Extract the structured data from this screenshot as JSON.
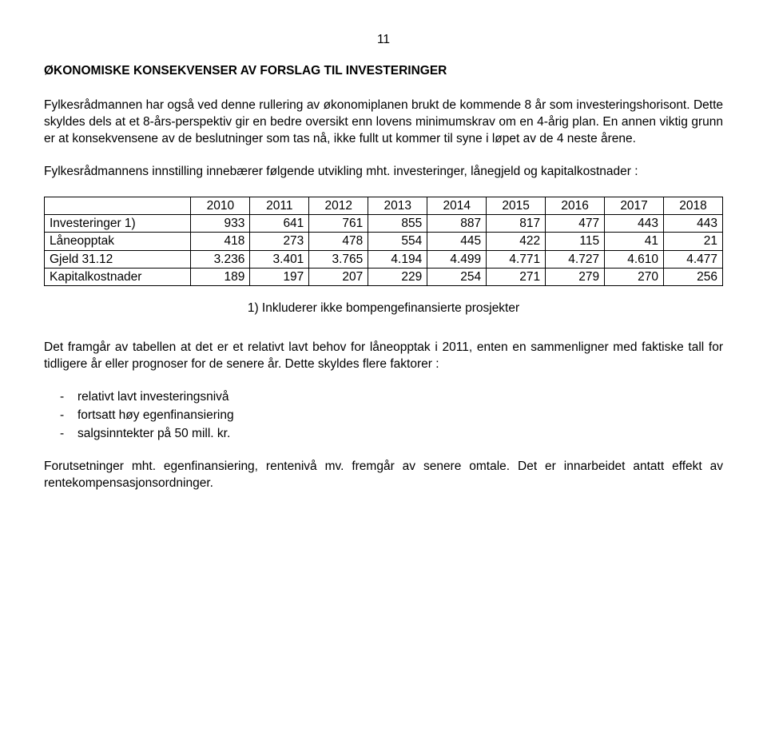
{
  "page_number": "11",
  "title": "ØKONOMISKE KONSEKVENSER AV FORSLAG TIL INVESTERINGER",
  "para1": "Fylkesrådmannen har også ved denne rullering av økonomiplanen brukt de kommende 8 år som investeringshorisont. Dette skyldes dels at et 8-års-perspektiv gir en bedre oversikt enn lovens minimumskrav om en 4-årig plan. En annen viktig grunn er at konsekvensene av de beslutninger som tas nå, ikke fullt ut kommer til syne i løpet av de 4 neste årene.",
  "para2": "Fylkesrådmannens innstilling innebærer følgende utvikling mht. investeringer, lånegjeld og kapitalkostnader :",
  "table": {
    "type": "table",
    "columns": [
      "",
      "2010",
      "2011",
      "2012",
      "2013",
      "2014",
      "2015",
      "2016",
      "2017",
      "2018"
    ],
    "rows": [
      [
        "Investeringer 1)",
        "933",
        "641",
        "761",
        "855",
        "887",
        "817",
        "477",
        "443",
        "443"
      ],
      [
        "Låneopptak",
        "418",
        "273",
        "478",
        "554",
        "445",
        "422",
        "115",
        "41",
        "21"
      ],
      [
        "Gjeld 31.12",
        "3.236",
        "3.401",
        "3.765",
        "4.194",
        "4.499",
        "4.771",
        "4.727",
        "4.610",
        "4.477"
      ],
      [
        "Kapitalkostnader",
        "189",
        "197",
        "207",
        "229",
        "254",
        "271",
        "279",
        "270",
        "256"
      ]
    ],
    "border_color": "#000000",
    "background_color": "#ffffff",
    "font_size": 15.5
  },
  "footnote": "1) Inkluderer ikke bompengefinansierte prosjekter",
  "para3": "Det framgår av tabellen at det er et relativt lavt behov for låneopptak i 2011, enten en sammenligner med faktiske tall for tidligere år eller prognoser for de senere år. Dette skyldes flere faktorer :",
  "bullets": [
    "relativt lavt investeringsnivå",
    "fortsatt høy egenfinansiering",
    "salgsinntekter på 50 mill. kr."
  ],
  "para4": "Forutsetninger mht. egenfinansiering, rentenivå mv. fremgår av senere omtale. Det er innarbeidet antatt effekt av rentekompensasjonsordninger."
}
